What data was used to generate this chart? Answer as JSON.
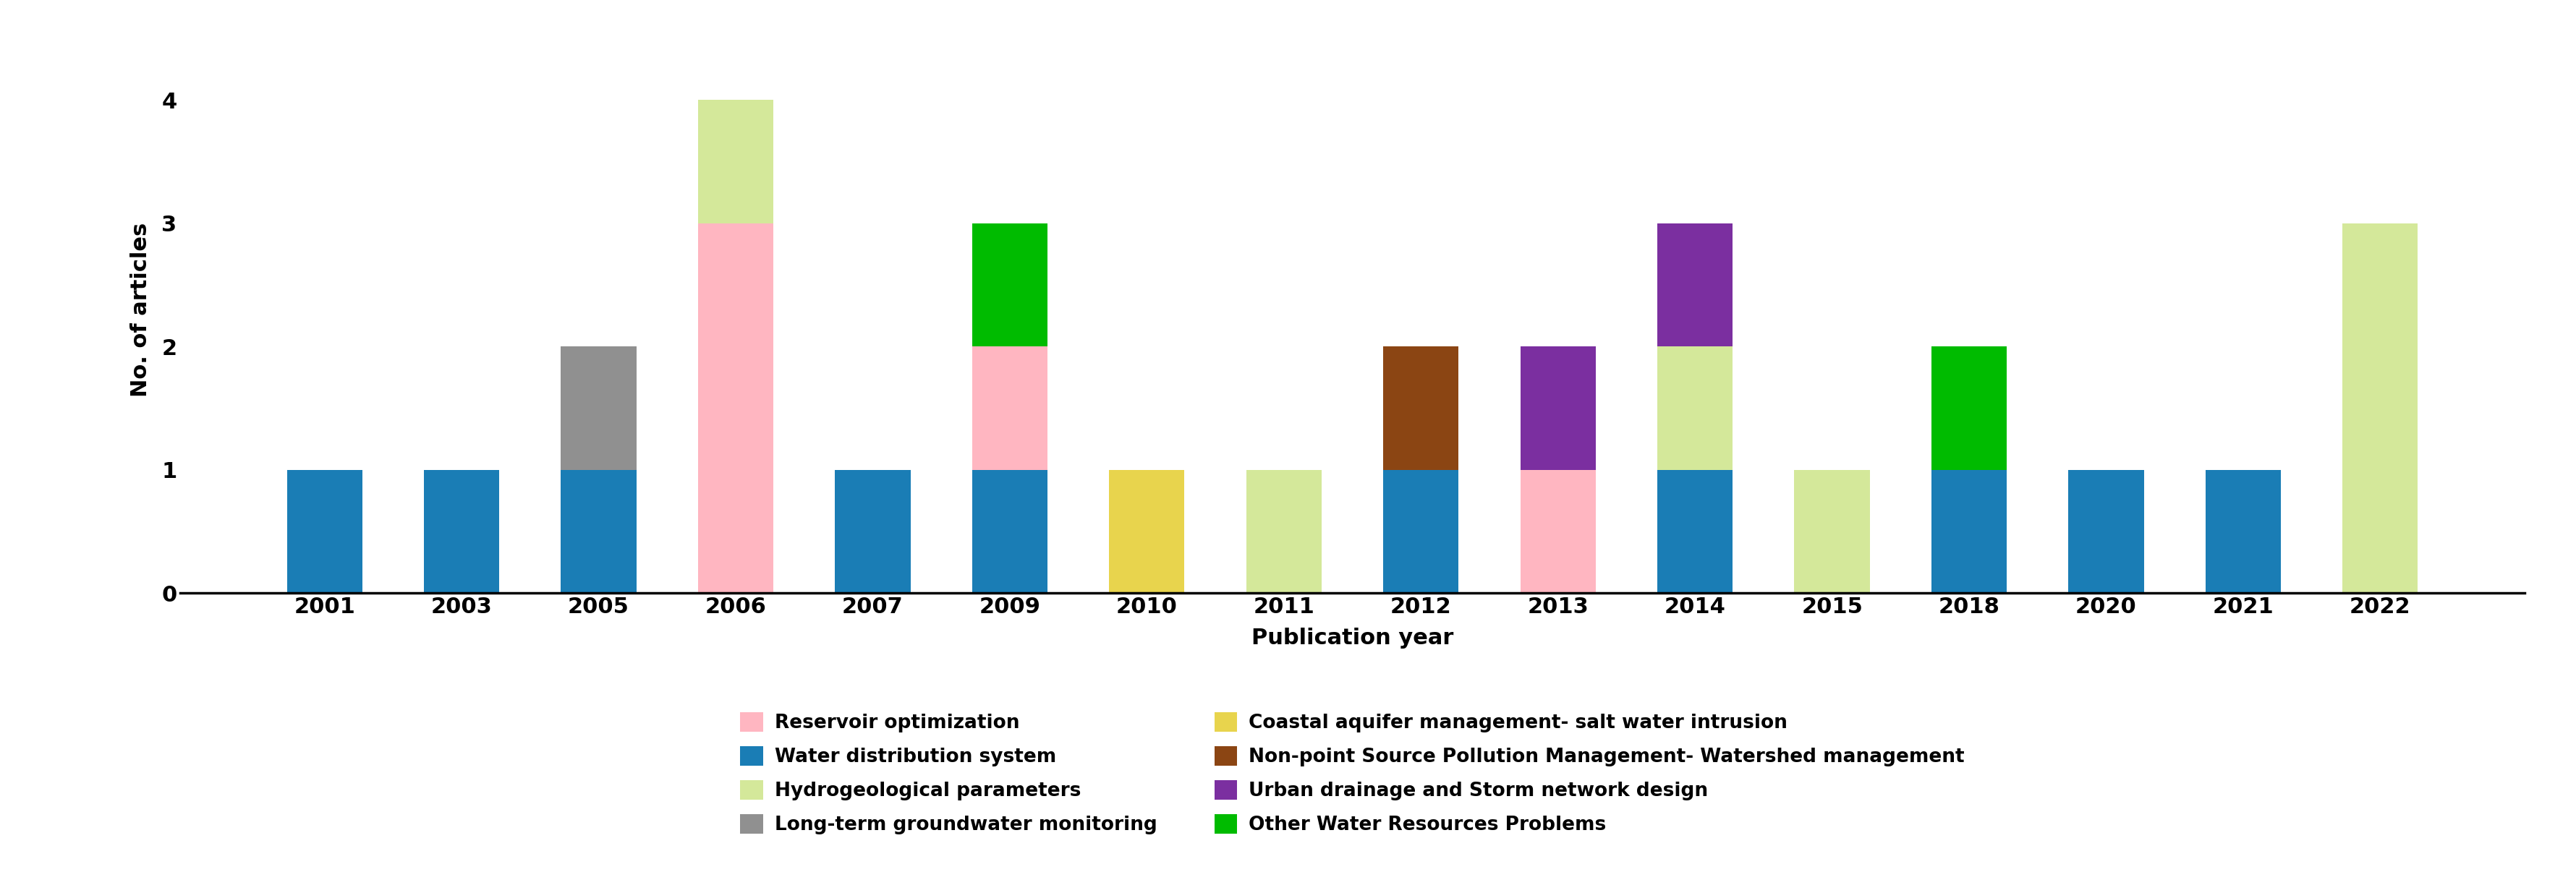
{
  "years": [
    2001,
    2003,
    2005,
    2006,
    2007,
    2009,
    2010,
    2011,
    2012,
    2013,
    2014,
    2015,
    2018,
    2020,
    2021,
    2022
  ],
  "stack_order": [
    "Water distribution system",
    "Long-term groundwater monitoring",
    "Reservoir optimization",
    "Coastal aquifer management- salt water intrusion",
    "Non-point Source Pollution Management- Watershed management",
    "Hydrogeological parameters",
    "Urban drainage and Storm network design",
    "Other Water Resources Problems"
  ],
  "categories": {
    "Water distribution system": {
      "color": "#1a7db5",
      "values": {
        "2001": 1,
        "2003": 1,
        "2005": 1,
        "2006": 0,
        "2007": 1,
        "2009": 1,
        "2010": 0,
        "2011": 0,
        "2012": 1,
        "2013": 0,
        "2014": 1,
        "2015": 0,
        "2018": 1,
        "2020": 1,
        "2021": 1,
        "2022": 0
      }
    },
    "Long-term groundwater monitoring": {
      "color": "#909090",
      "values": {
        "2001": 0,
        "2003": 0,
        "2005": 1,
        "2006": 0,
        "2007": 0,
        "2009": 0,
        "2010": 0,
        "2011": 0,
        "2012": 0,
        "2013": 0,
        "2014": 0,
        "2015": 0,
        "2018": 0,
        "2020": 0,
        "2021": 0,
        "2022": 0
      }
    },
    "Reservoir optimization": {
      "color": "#ffb6c1",
      "values": {
        "2001": 0,
        "2003": 0,
        "2005": 0,
        "2006": 3,
        "2007": 0,
        "2009": 1,
        "2010": 0,
        "2011": 0,
        "2012": 0,
        "2013": 1,
        "2014": 0,
        "2015": 0,
        "2018": 0,
        "2020": 0,
        "2021": 0,
        "2022": 0
      }
    },
    "Coastal aquifer management- salt water intrusion": {
      "color": "#e8d44d",
      "values": {
        "2001": 0,
        "2003": 0,
        "2005": 0,
        "2006": 0,
        "2007": 0,
        "2009": 0,
        "2010": 1,
        "2011": 0,
        "2012": 0,
        "2013": 0,
        "2014": 0,
        "2015": 0,
        "2018": 0,
        "2020": 0,
        "2021": 0,
        "2022": 0
      }
    },
    "Non-point Source Pollution Management- Watershed management": {
      "color": "#8b4513",
      "values": {
        "2001": 0,
        "2003": 0,
        "2005": 0,
        "2006": 0,
        "2007": 0,
        "2009": 0,
        "2010": 0,
        "2011": 0,
        "2012": 1,
        "2013": 0,
        "2014": 0,
        "2015": 0,
        "2018": 0,
        "2020": 0,
        "2021": 0,
        "2022": 0
      }
    },
    "Hydrogeological parameters": {
      "color": "#d4e89a",
      "values": {
        "2001": 0,
        "2003": 0,
        "2005": 0,
        "2006": 1,
        "2007": 0,
        "2009": 0,
        "2010": 0,
        "2011": 1,
        "2012": 0,
        "2013": 0,
        "2014": 1,
        "2015": 1,
        "2018": 0,
        "2020": 0,
        "2021": 0,
        "2022": 3
      }
    },
    "Urban drainage and Storm network design": {
      "color": "#7b2fa0",
      "values": {
        "2001": 0,
        "2003": 0,
        "2005": 0,
        "2006": 0,
        "2007": 0,
        "2009": 0,
        "2010": 0,
        "2011": 0,
        "2012": 0,
        "2013": 1,
        "2014": 1,
        "2015": 0,
        "2018": 0,
        "2020": 0,
        "2021": 0,
        "2022": 0
      }
    },
    "Other Water Resources Problems": {
      "color": "#00bb00",
      "values": {
        "2001": 0,
        "2003": 0,
        "2005": 0,
        "2006": 0,
        "2007": 0,
        "2009": 1,
        "2010": 0,
        "2011": 0,
        "2012": 0,
        "2013": 0,
        "2014": 0,
        "2015": 0,
        "2018": 1,
        "2020": 0,
        "2021": 0,
        "2022": 0
      }
    }
  },
  "xlabel": "Publication year",
  "ylabel": "No. of articles",
  "ylim": [
    0,
    4.6
  ],
  "yticks": [
    0,
    1,
    2,
    3,
    4
  ],
  "bar_width": 0.55,
  "legend_order": [
    "Reservoir optimization",
    "Water distribution system",
    "Hydrogeological parameters",
    "Long-term groundwater monitoring",
    "Coastal aquifer management- salt water intrusion",
    "Non-point Source Pollution Management- Watershed management",
    "Urban drainage and Storm network design",
    "Other Water Resources Problems"
  ]
}
